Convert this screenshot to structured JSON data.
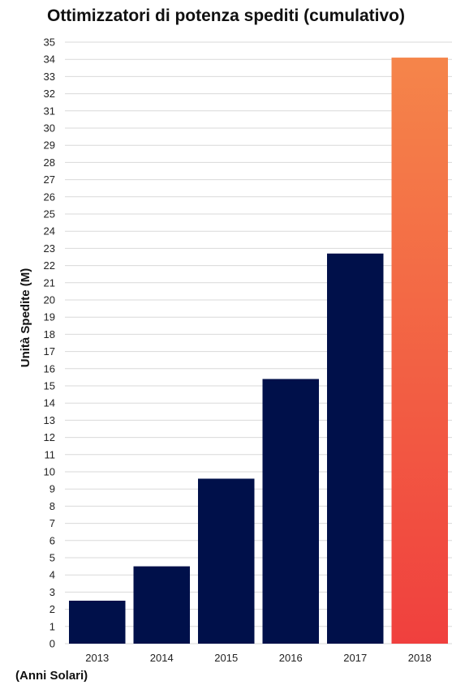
{
  "chart_data": {
    "type": "bar",
    "title": "Ottimizzatori di potenza spediti (cumulativo)",
    "ylabel": "Unità Spedite (M)",
    "xlabel": "(Anni Solari)",
    "categories": [
      "2013",
      "2014",
      "2015",
      "2016",
      "2017",
      "2018"
    ],
    "values": [
      2.5,
      4.5,
      9.6,
      15.4,
      22.7,
      34.1
    ],
    "ylim": [
      0,
      35
    ],
    "ytick_step": 1,
    "grid": true,
    "colors": {
      "bar": "#00104a",
      "highlight_top": "#f5854a",
      "highlight_bottom": "#f0403e",
      "grid": "#d9d9d9"
    }
  }
}
